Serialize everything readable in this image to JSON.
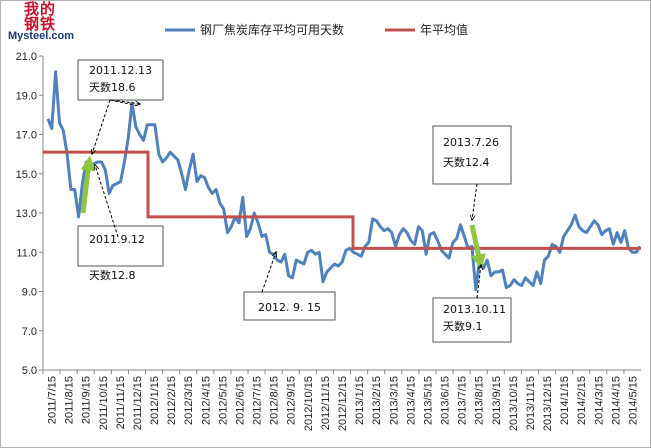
{
  "logo": {
    "cn": "我的钢铁",
    "en": "Mysteel.com"
  },
  "chart_data": {
    "type": "line",
    "title": "",
    "xlabel": "",
    "ylabel": "",
    "ylim": [
      5.0,
      21.0
    ],
    "yticks": [
      "21.0",
      "19.0",
      "17.0",
      "15.0",
      "13.0",
      "11.0",
      "9.0",
      "7.0",
      "5.0"
    ],
    "xticks": [
      "2011/7/15",
      "2011/8/15",
      "2011/9/15",
      "2011/10/15",
      "2011/11/15",
      "2011/12/15",
      "2012/1/15",
      "2012/2/15",
      "2012/3/15",
      "2012/4/15",
      "2012/5/15",
      "2012/6/15",
      "2012/7/15",
      "2012/8/15",
      "2012/9/15",
      "2012/10/15",
      "2012/11/15",
      "2012/12/15",
      "2013/1/15",
      "2013/2/15",
      "2013/3/15",
      "2013/4/15",
      "2013/5/15",
      "2013/6/15",
      "2013/7/15",
      "2013/8/15",
      "2013/9/15",
      "2013/10/15",
      "2013/11/15",
      "2013/12/15",
      "2014/1/15",
      "2014/2/15",
      "2014/3/15",
      "2014/4/15",
      "2014/5/15"
    ],
    "legend": {
      "position": "top",
      "entries": [
        "钢厂焦炭库存平均可用天数",
        "年平均值"
      ]
    },
    "colors": {
      "inventory": "#4f81bd",
      "average": "#c0504d",
      "arrow": "#8dc63f"
    },
    "series": [
      {
        "name": "钢厂焦炭库存平均可用天数",
        "color": "#4f81bd",
        "values": [
          17.8,
          17.3,
          20.2,
          17.6,
          17.2,
          16.0,
          14.2,
          14.2,
          12.8,
          14.5,
          15.6,
          15.4,
          15.5,
          15.6,
          15.6,
          15.2,
          14.0,
          14.4,
          14.5,
          14.6,
          15.6,
          16.8,
          18.6,
          17.4,
          17.0,
          16.7,
          17.5,
          17.5,
          17.5,
          16.0,
          15.6,
          15.8,
          16.1,
          15.9,
          15.7,
          15.0,
          14.2,
          15.2,
          16.0,
          14.6,
          14.9,
          14.8,
          14.3,
          14.0,
          14.2,
          13.5,
          13.2,
          12.0,
          12.3,
          12.8,
          12.5,
          13.8,
          11.8,
          12.2,
          13.0,
          12.5,
          11.8,
          11.9,
          11.0,
          10.9,
          10.6,
          10.5,
          10.9,
          9.8,
          9.7,
          10.6,
          10.5,
          10.4,
          11.0,
          11.1,
          10.9,
          11.0,
          9.5,
          10.0,
          10.2,
          10.4,
          10.3,
          10.5,
          11.1,
          11.2,
          11.0,
          10.9,
          10.8,
          11.3,
          11.5,
          12.7,
          12.6,
          12.3,
          12.1,
          12.2,
          12.0,
          11.3,
          11.9,
          12.2,
          12.0,
          11.6,
          11.4,
          12.3,
          12.1,
          10.9,
          11.9,
          12.0,
          11.6,
          11.1,
          10.9,
          10.7,
          11.5,
          11.7,
          12.4,
          11.8,
          11.2,
          11.3,
          9.1,
          10.6,
          10.2,
          10.6,
          9.8,
          10.0,
          10.0,
          10.1,
          9.2,
          9.3,
          9.6,
          9.4,
          9.3,
          9.7,
          9.5,
          9.3,
          10.0,
          9.4,
          10.6,
          10.8,
          11.4,
          11.3,
          11.0,
          11.8,
          12.1,
          12.4,
          12.9,
          12.3,
          12.1,
          12.0,
          12.3,
          12.6,
          12.4,
          11.9,
          12.1,
          12.2,
          11.4,
          12.0,
          11.5,
          12.1,
          11.2,
          11.0,
          11.0,
          11.3
        ]
      },
      {
        "name": "年平均值",
        "color": "#c0504d",
        "segments": [
          {
            "from": "2011/7/15",
            "to": "2011/12/31",
            "value": 16.1
          },
          {
            "from": "2012/1/1",
            "to": "2012/12/31",
            "value": 12.8
          },
          {
            "from": "2013/1/1",
            "to": "2014/5/15",
            "value": 11.2
          }
        ]
      }
    ],
    "annotations": [
      {
        "date": "2011.12.13",
        "text": "天数18.6",
        "value": 18.6
      },
      {
        "date": "2011.9.12",
        "text": "天数12.8",
        "value": 12.8
      },
      {
        "date": "2012. 9. 15",
        "text": "",
        "value": 9.7
      },
      {
        "date": "2013.7.26",
        "text": "天数12.4",
        "value": 12.4
      },
      {
        "date": "2013.10.11",
        "text": "天数9.1",
        "value": 9.1
      }
    ]
  }
}
